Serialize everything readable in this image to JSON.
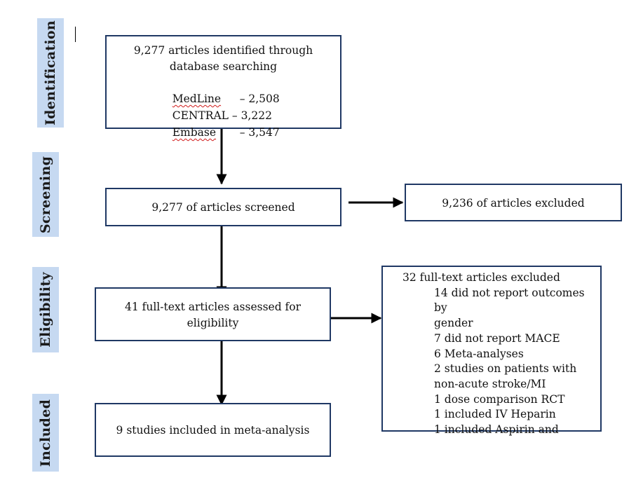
{
  "stages": {
    "identification": "Identification",
    "screening": "Screening",
    "eligibility": "Eligibility",
    "included": "Included"
  },
  "identified": {
    "line1": "9,277 articles identified through",
    "line2": "database searching",
    "sources": [
      {
        "name": "MedLine",
        "count": "– 2,508"
      },
      {
        "name": "CENTRAL",
        "count": "– 3,222"
      },
      {
        "name": "Embase",
        "count": "– 3,547"
      }
    ]
  },
  "screened": "9,277 of articles screened",
  "screen_excluded": "9,236 of articles excluded",
  "assessed": {
    "line1": "41 full-text articles assessed for",
    "line2": "eligibility"
  },
  "fulltext_excluded": {
    "title": "32 full-text articles excluded",
    "reasons": [
      "14 did not report outcomes by",
      "gender",
      "7 did not report MACE",
      "6 Meta-analyses",
      "2 studies on patients with",
      "non-acute stroke/MI",
      "1 dose comparison RCT",
      "1 included IV Heparin",
      "1 included Aspirin and"
    ]
  },
  "included": "9 studies included in meta-analysis"
}
